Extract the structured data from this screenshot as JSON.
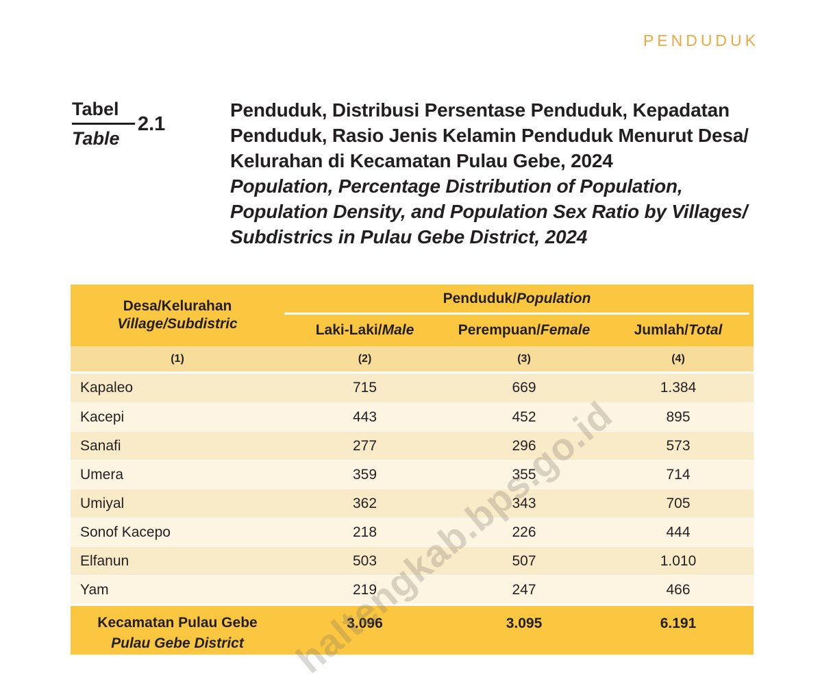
{
  "page": {
    "chapter_label": "PENDUDUK",
    "watermark": "haltengkab.bps.go.id",
    "table_label": {
      "id": "Tabel",
      "en": "Table",
      "number": "2.1"
    },
    "title_id": [
      "Penduduk, Distribusi Persentase Penduduk, Kepadatan",
      "Penduduk, Rasio Jenis Kelamin Penduduk Menurut Desa/",
      "Kelurahan di Kecamatan Pulau Gebe, 2024"
    ],
    "title_en": [
      "Population, Percentage Distribution of Population,",
      "Population Density, and Population Sex Ratio by Villages/",
      "Subdistrics in Pulau Gebe District, 2024"
    ]
  },
  "table": {
    "col1": {
      "id": "Desa/Kelurahan",
      "en": "Village/Subdistric",
      "num": "(1)"
    },
    "group": {
      "id": "Penduduk/",
      "en": "Population"
    },
    "cols": [
      {
        "id": "Laki-Laki/",
        "en": "Male",
        "num": "(2)"
      },
      {
        "id": "Perempuan/",
        "en": "Female",
        "num": "(3)"
      },
      {
        "id": "Jumlah/",
        "en": "Total",
        "num": "(4)"
      }
    ],
    "rows": [
      {
        "name": "Kapaleo",
        "male": "715",
        "female": "669",
        "total": "1.384"
      },
      {
        "name": "Kacepi",
        "male": "443",
        "female": "452",
        "total": "895"
      },
      {
        "name": "Sanafi",
        "male": "277",
        "female": "296",
        "total": "573"
      },
      {
        "name": "Umera",
        "male": "359",
        "female": "355",
        "total": "714"
      },
      {
        "name": "Umiyal",
        "male": "362",
        "female": "343",
        "total": "705"
      },
      {
        "name": "Sonof Kacepo",
        "male": "218",
        "female": "226",
        "total": "444"
      },
      {
        "name": "Elfanun",
        "male": "503",
        "female": "507",
        "total": "1.010"
      },
      {
        "name": "Yam",
        "male": "219",
        "female": "247",
        "total": "466"
      }
    ],
    "total": {
      "id": "Kecamatan Pulau Gebe",
      "en": "Pulau Gebe District",
      "male": "3.096",
      "female": "3.095",
      "total": "6.191"
    }
  },
  "chart_data": {
    "type": "table",
    "title": "Penduduk, Distribusi Persentase Penduduk, Kepadatan Penduduk, Rasio Jenis Kelamin Penduduk Menurut Desa/Kelurahan di Kecamatan Pulau Gebe, 2024",
    "categories": [
      "Kapaleo",
      "Kacepi",
      "Sanafi",
      "Umera",
      "Umiyal",
      "Sonof Kacepo",
      "Elfanun",
      "Yam"
    ],
    "series": [
      {
        "name": "Laki-Laki/Male",
        "values": [
          715,
          443,
          277,
          359,
          362,
          218,
          503,
          219
        ]
      },
      {
        "name": "Perempuan/Female",
        "values": [
          669,
          452,
          296,
          355,
          343,
          226,
          507,
          247
        ]
      },
      {
        "name": "Jumlah/Total",
        "values": [
          1384,
          895,
          573,
          714,
          705,
          444,
          1010,
          466
        ]
      }
    ],
    "totals": {
      "male": 3096,
      "female": 3095,
      "total": 6191
    }
  }
}
